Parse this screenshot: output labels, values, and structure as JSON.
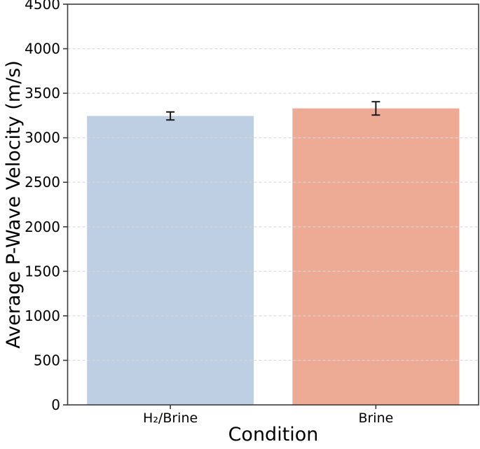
{
  "figure": {
    "background": "#ffffff"
  },
  "chart_data": {
    "type": "bar",
    "title": "",
    "xlabel": "Condition",
    "ylabel": "Average P-Wave Velocity (m/s)",
    "categories": [
      "H₂/Brine",
      "Brine"
    ],
    "values": [
      3245,
      3330
    ],
    "errors": [
      45,
      75
    ],
    "bar_colors": [
      "#becee3",
      "#edaa94"
    ],
    "error_bar_color": "#1a1a1a",
    "ylim": [
      0,
      4500
    ],
    "ytick_step": 500,
    "yticks": [
      0,
      500,
      1000,
      1500,
      2000,
      2500,
      3000,
      3500,
      4000,
      4500
    ],
    "grid": {
      "axis": "y",
      "style": "dashed",
      "color": "#d8d8d8",
      "on": true
    },
    "spine_color": "#3b3b3b",
    "legend": null
  }
}
